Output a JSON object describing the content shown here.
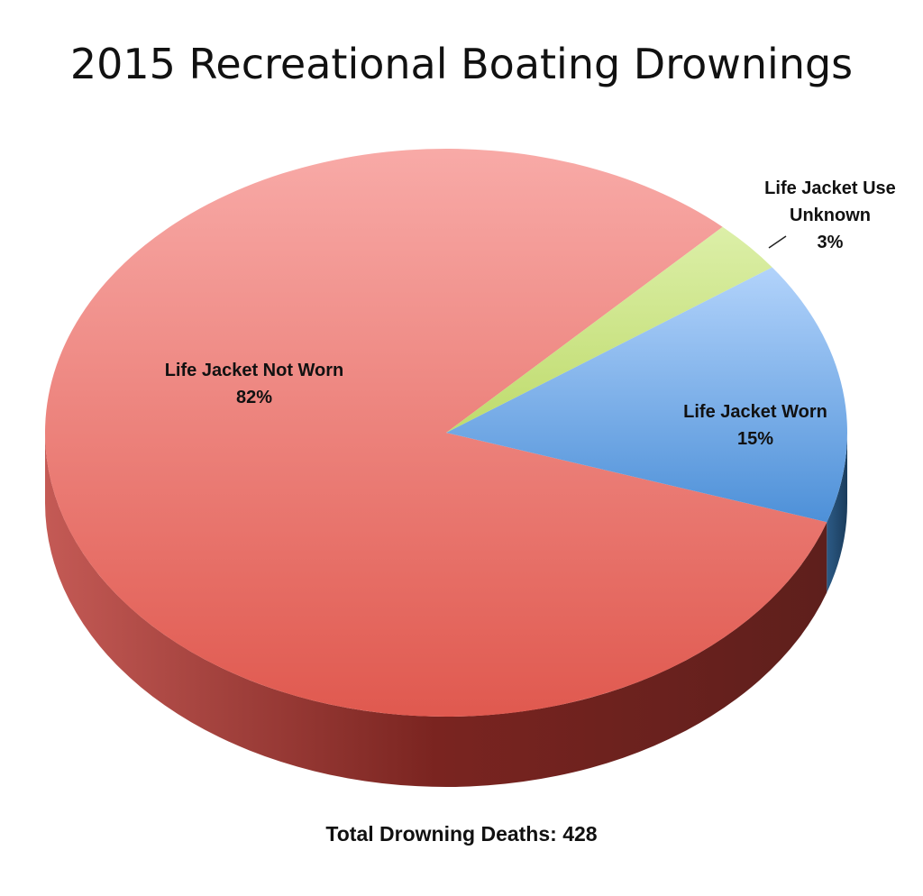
{
  "chart_data": {
    "type": "pie",
    "title": "2015 Recreational Boating Drownings",
    "slices": [
      {
        "label": "Life Jacket Not Worn",
        "value": 82,
        "value_label": "82%",
        "color": "#ee7570"
      },
      {
        "label": "Life Jacket Worn",
        "value": 15,
        "value_label": "15%",
        "color": "#80b2ec"
      },
      {
        "label": "Life Jacket Use Unknown",
        "value": 3,
        "value_label": "3%",
        "color": "#cfe58c"
      }
    ],
    "style": "3d"
  },
  "footer": {
    "label": "Total Drowning Deaths:",
    "value": "428"
  }
}
